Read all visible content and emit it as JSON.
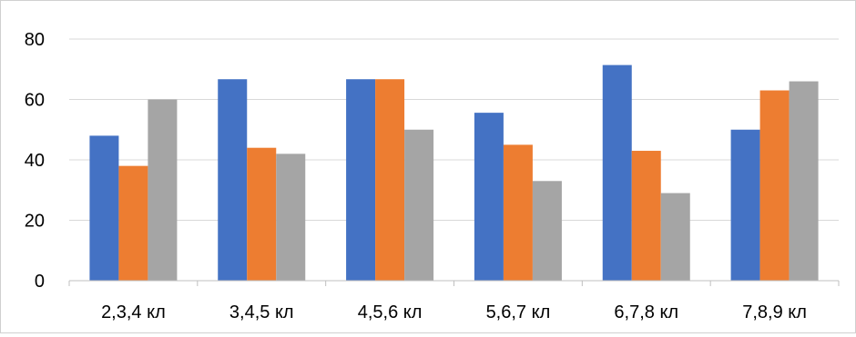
{
  "chart_data": {
    "type": "bar",
    "categories": [
      "2,3,4 кл",
      "3,4,5 кл",
      "4,5,6 кл",
      "5,6,7 кл",
      "6,7,8 кл",
      "7,8,9 кл"
    ],
    "series": [
      {
        "values": [
          48,
          66.7,
          66.7,
          55.6,
          71.4,
          50
        ],
        "color": "#4472C4"
      },
      {
        "values": [
          38,
          44,
          66.7,
          45,
          43,
          63
        ],
        "color": "#ED7D31"
      },
      {
        "values": [
          60,
          42,
          50,
          33,
          29,
          66
        ],
        "color": "#A5A5A5"
      }
    ],
    "ylim": [
      0,
      80
    ],
    "yticks": [
      "0",
      "20",
      "40",
      "60",
      "80"
    ],
    "grid": true,
    "legend": "none"
  }
}
